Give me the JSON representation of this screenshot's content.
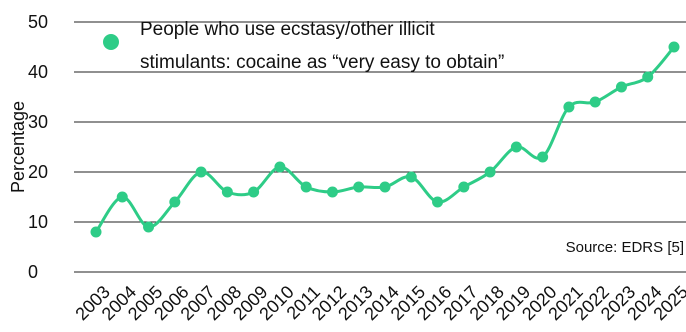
{
  "chart_data": {
    "type": "line",
    "ylabel": "Percentage",
    "ylim": [
      0,
      50
    ],
    "yticks": [
      0,
      10,
      20,
      30,
      40,
      50
    ],
    "grid": true,
    "legend_position": "top-left",
    "categories": [
      "2003",
      "2004",
      "2005",
      "2006",
      "2007",
      "2008",
      "2009",
      "2010",
      "2011",
      "2012",
      "2013",
      "2014",
      "2015",
      "2016",
      "2017",
      "2018",
      "2019",
      "2020",
      "2021",
      "2022",
      "2023",
      "2024",
      "2025"
    ],
    "series": [
      {
        "name": "People who use ecstasy/other illicit stimulants: cocaine as “very easy to obtain”",
        "name_lines": [
          "People who use ecstasy/other illicit",
          "stimulants: cocaine as “very easy to obtain”"
        ],
        "color": "#2ecc87",
        "values": [
          8,
          15,
          9,
          14,
          20,
          16,
          16,
          21,
          17,
          16,
          17,
          17,
          19,
          14,
          17,
          20,
          25,
          23,
          33,
          34,
          37,
          39,
          45
        ]
      }
    ],
    "annotation": "Source: EDRS [5]"
  }
}
